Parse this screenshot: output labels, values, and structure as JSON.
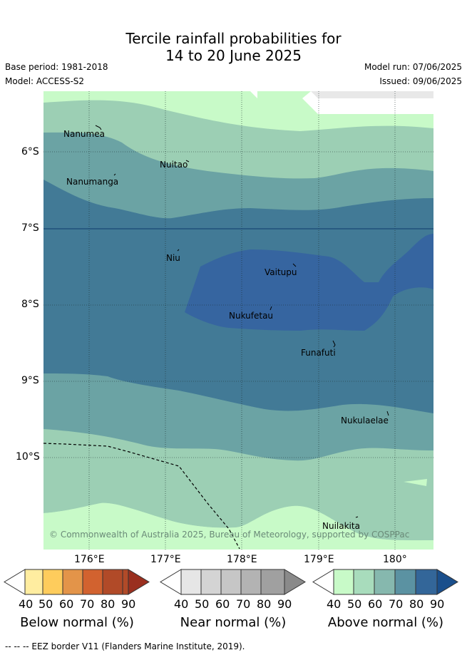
{
  "title": {
    "line1": "Tercile rainfall probabilities for",
    "line2": "14 to 20 June 2025"
  },
  "meta": {
    "base_period": "Base period: 1981-2018",
    "model": "Model: ACCESS-S2",
    "model_run": "Model run: 07/06/2025",
    "issued": "Issued: 09/06/2025"
  },
  "map": {
    "copyright": "© Commonwealth of Australia 2025, Bureau of Meteorology, supported by COSPPac",
    "lat_labels": [
      "6°S",
      "7°S",
      "8°S",
      "9°S",
      "10°S"
    ],
    "lon_labels": [
      "176°E",
      "177°E",
      "178°E",
      "179°E",
      "180°"
    ],
    "places": [
      {
        "name": "Nanumea"
      },
      {
        "name": "Nuitao"
      },
      {
        "name": "Nanumanga"
      },
      {
        "name": "Niu"
      },
      {
        "name": "Vaitupu"
      },
      {
        "name": "Nukufetau"
      },
      {
        "name": "Funafuti"
      },
      {
        "name": "Nukulaelae"
      },
      {
        "name": "Nuilakita"
      }
    ],
    "colors": {
      "ocean_light": "#c8fac8",
      "band_50": "#9ccfb4",
      "band_60": "#6ba3a4",
      "band_70": "#427a96",
      "band_80": "#3665a0",
      "land_white": "#ffffff",
      "gray_patch": "#e8e8e8"
    }
  },
  "colorbars": [
    {
      "label": "Below normal (%)",
      "ticks": [
        "40",
        "50",
        "60",
        "70",
        "80",
        "90"
      ],
      "colors": [
        "#ffeda0",
        "#fecc5c",
        "#e39449",
        "#d2622f",
        "#b14a28",
        "#9a2f1f"
      ]
    },
    {
      "label": "Near normal (%)",
      "ticks": [
        "40",
        "50",
        "60",
        "70",
        "80",
        "90"
      ],
      "colors": [
        "#e6e6e6",
        "#d4d4d4",
        "#c6c6c6",
        "#b3b3b3",
        "#a0a0a0",
        "#8a8a8a"
      ]
    },
    {
      "label": "Above normal (%)",
      "ticks": [
        "40",
        "50",
        "60",
        "70",
        "80",
        "90"
      ],
      "colors": [
        "#c8fac8",
        "#a8dcbc",
        "#86b8ae",
        "#5b92a2",
        "#336699",
        "#1a4f8c"
      ]
    }
  ],
  "footer": "--  --  -- EEZ border V11 (Flanders Marine Institute, 2019)."
}
